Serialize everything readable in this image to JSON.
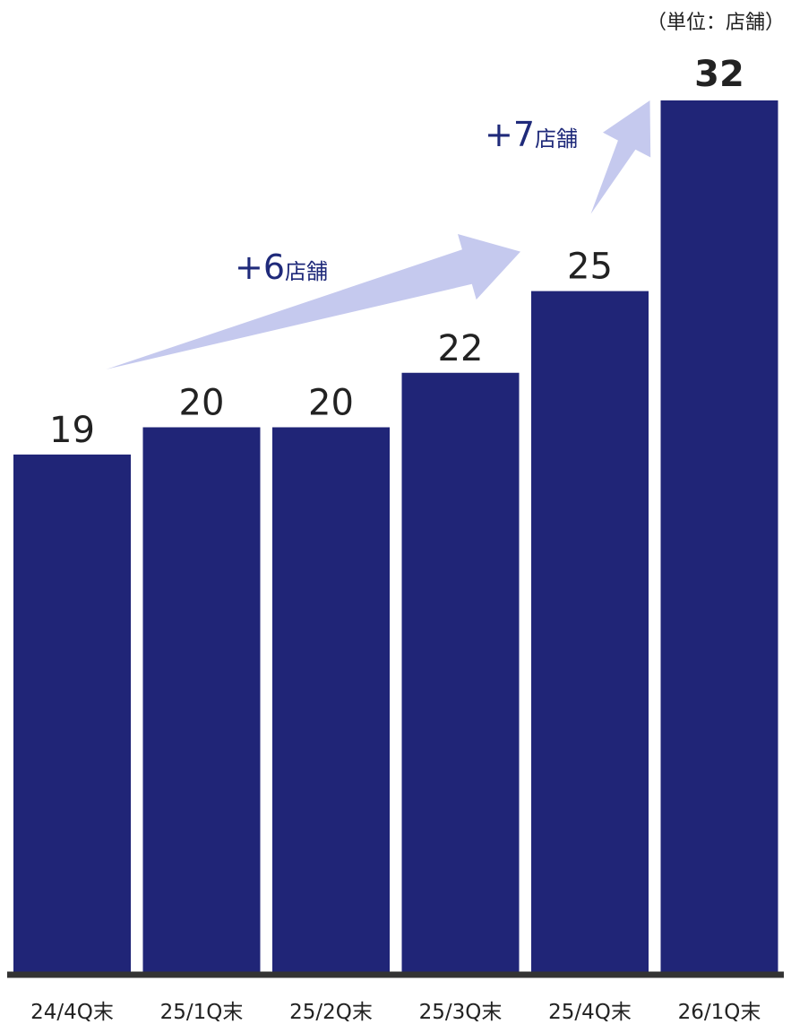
{
  "chart_data": {
    "type": "bar",
    "unit_label": "（単位：店舗）",
    "categories": [
      "24/4Q末",
      "25/1Q末",
      "25/2Q末",
      "25/3Q末",
      "25/4Q末",
      "26/1Q末"
    ],
    "values": [
      19,
      20,
      20,
      22,
      25,
      32
    ],
    "ylim": [
      0,
      32
    ],
    "grid": false,
    "bar_color": "#202577",
    "annotations": [
      {
        "prefix": "+",
        "number": "6",
        "suffix": "店舗",
        "from_category": "24/4Q末",
        "to_category": "25/4Q末"
      },
      {
        "prefix": "+",
        "number": "7",
        "suffix": "店舗",
        "from_category": "25/4Q末",
        "to_category": "26/1Q末"
      }
    ],
    "arrow_color": "#c5c9ee"
  }
}
